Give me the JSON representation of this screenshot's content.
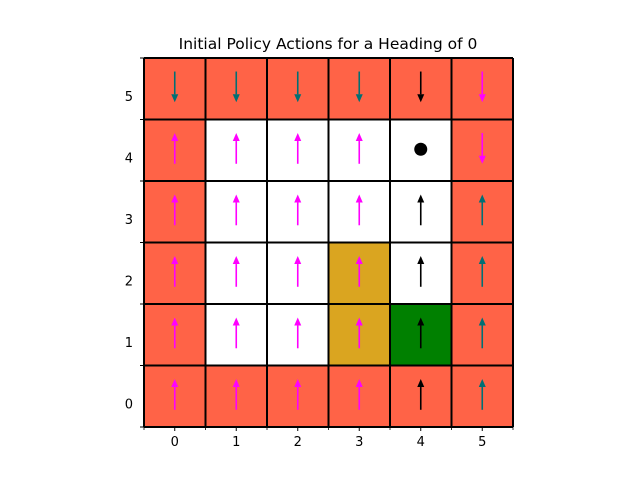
{
  "chart_data": {
    "type": "heatmap",
    "title": "Initial Policy Actions for a Heading of 0",
    "xlabel": "",
    "ylabel": "",
    "xlim": [
      -0.5,
      5.5
    ],
    "ylim": [
      -0.5,
      5.5
    ],
    "xticks": [
      "0",
      "1",
      "2",
      "3",
      "4",
      "5"
    ],
    "yticks": [
      "0",
      "1",
      "2",
      "3",
      "4",
      "5"
    ],
    "grid": true,
    "colors": {
      "hazard": "#FF6347",
      "free": "#FFFFFF",
      "obstacle": "#DAA520",
      "goal": "#008000",
      "grid_line": "#000000"
    },
    "cells": [
      [
        "hazard",
        "hazard",
        "hazard",
        "hazard",
        "hazard",
        "hazard"
      ],
      [
        "hazard",
        "free",
        "free",
        "free",
        "free",
        "hazard"
      ],
      [
        "hazard",
        "free",
        "free",
        "free",
        "free",
        "hazard"
      ],
      [
        "hazard",
        "free",
        "free",
        "obstacle",
        "free",
        "hazard"
      ],
      [
        "hazard",
        "free",
        "free",
        "obstacle",
        "goal",
        "hazard"
      ],
      [
        "hazard",
        "hazard",
        "hazard",
        "hazard",
        "hazard",
        "hazard"
      ]
    ],
    "arrow_colors": {
      "magenta": "#FF00FF",
      "teal": "#006F74",
      "black": "#000000"
    },
    "arrows": [
      {
        "x": 0,
        "y": 0,
        "dir": "up",
        "color": "magenta"
      },
      {
        "x": 1,
        "y": 0,
        "dir": "up",
        "color": "magenta"
      },
      {
        "x": 2,
        "y": 0,
        "dir": "up",
        "color": "magenta"
      },
      {
        "x": 3,
        "y": 0,
        "dir": "up",
        "color": "magenta"
      },
      {
        "x": 4,
        "y": 0,
        "dir": "up",
        "color": "black"
      },
      {
        "x": 5,
        "y": 0,
        "dir": "up",
        "color": "teal"
      },
      {
        "x": 0,
        "y": 1,
        "dir": "up",
        "color": "magenta"
      },
      {
        "x": 1,
        "y": 1,
        "dir": "up",
        "color": "magenta"
      },
      {
        "x": 2,
        "y": 1,
        "dir": "up",
        "color": "magenta"
      },
      {
        "x": 3,
        "y": 1,
        "dir": "up",
        "color": "magenta"
      },
      {
        "x": 4,
        "y": 1,
        "dir": "up",
        "color": "black"
      },
      {
        "x": 5,
        "y": 1,
        "dir": "up",
        "color": "teal"
      },
      {
        "x": 0,
        "y": 2,
        "dir": "up",
        "color": "magenta"
      },
      {
        "x": 1,
        "y": 2,
        "dir": "up",
        "color": "magenta"
      },
      {
        "x": 2,
        "y": 2,
        "dir": "up",
        "color": "magenta"
      },
      {
        "x": 3,
        "y": 2,
        "dir": "up",
        "color": "magenta"
      },
      {
        "x": 4,
        "y": 2,
        "dir": "up",
        "color": "black"
      },
      {
        "x": 5,
        "y": 2,
        "dir": "up",
        "color": "teal"
      },
      {
        "x": 0,
        "y": 3,
        "dir": "up",
        "color": "magenta"
      },
      {
        "x": 1,
        "y": 3,
        "dir": "up",
        "color": "magenta"
      },
      {
        "x": 2,
        "y": 3,
        "dir": "up",
        "color": "magenta"
      },
      {
        "x": 3,
        "y": 3,
        "dir": "up",
        "color": "magenta"
      },
      {
        "x": 4,
        "y": 3,
        "dir": "up",
        "color": "black"
      },
      {
        "x": 5,
        "y": 3,
        "dir": "up",
        "color": "teal"
      },
      {
        "x": 0,
        "y": 4,
        "dir": "up",
        "color": "magenta"
      },
      {
        "x": 1,
        "y": 4,
        "dir": "up",
        "color": "magenta"
      },
      {
        "x": 2,
        "y": 4,
        "dir": "up",
        "color": "magenta"
      },
      {
        "x": 3,
        "y": 4,
        "dir": "up",
        "color": "magenta"
      },
      {
        "x": 5,
        "y": 4,
        "dir": "down",
        "color": "magenta"
      },
      {
        "x": 0,
        "y": 5,
        "dir": "down",
        "color": "teal"
      },
      {
        "x": 1,
        "y": 5,
        "dir": "down",
        "color": "teal"
      },
      {
        "x": 2,
        "y": 5,
        "dir": "down",
        "color": "teal"
      },
      {
        "x": 3,
        "y": 5,
        "dir": "down",
        "color": "teal"
      },
      {
        "x": 4,
        "y": 5,
        "dir": "down",
        "color": "black"
      },
      {
        "x": 5,
        "y": 5,
        "dir": "down",
        "color": "magenta"
      }
    ],
    "agent": {
      "x": 4,
      "y": 4,
      "marker": "dot",
      "color": "#000000"
    }
  }
}
